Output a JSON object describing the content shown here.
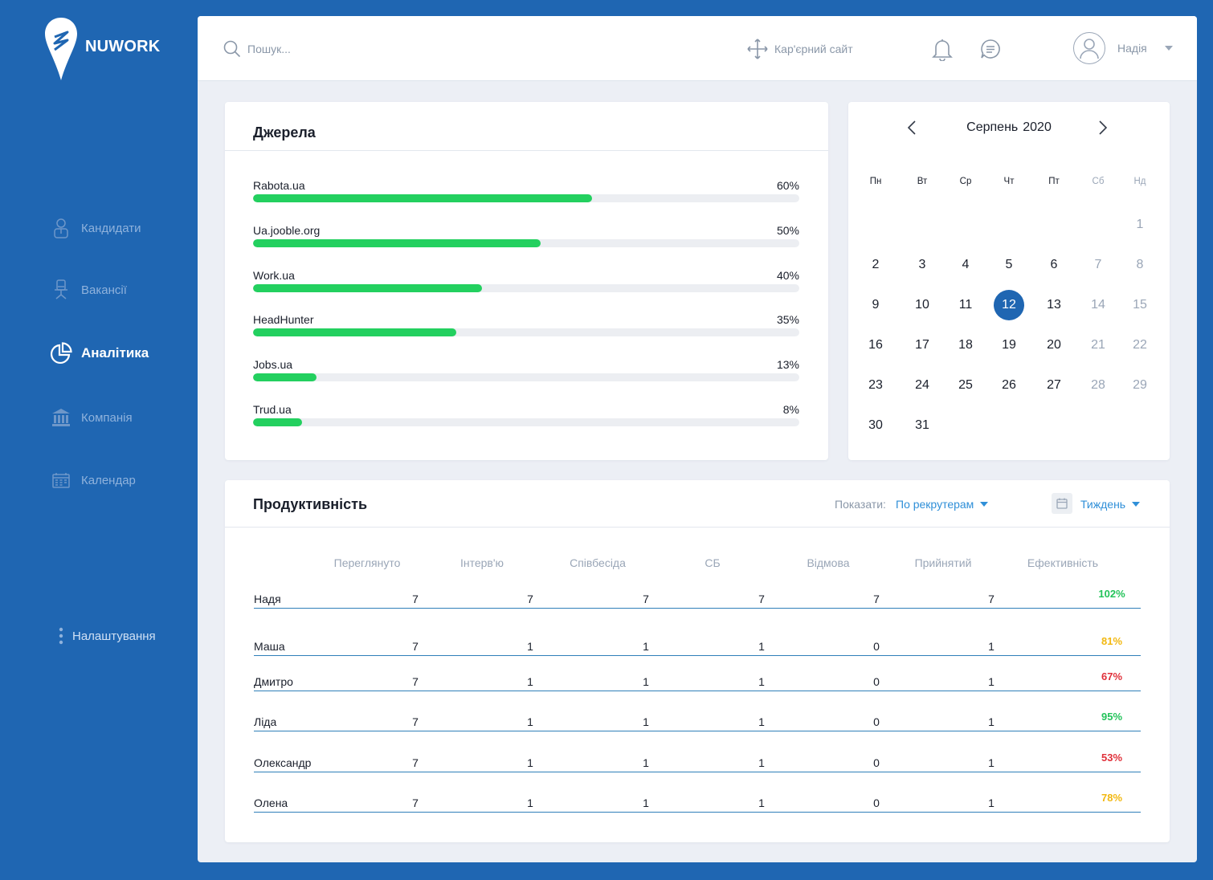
{
  "app": {
    "name": "NUWORK"
  },
  "sidebar": {
    "items": [
      {
        "label": "Кандидати",
        "icon": "user-icon",
        "active": false
      },
      {
        "label": "Вакансії",
        "icon": "chair-icon",
        "active": false
      },
      {
        "label": "Аналітика",
        "icon": "pie-chart-icon",
        "active": true
      },
      {
        "label": "Компанія",
        "icon": "building-icon",
        "active": false
      },
      {
        "label": "Календар",
        "icon": "calendar-icon",
        "active": false
      }
    ],
    "settings": {
      "label": "Налаштування",
      "icon": "more-vertical-icon"
    }
  },
  "topbar": {
    "search": {
      "placeholder": "Пошук...",
      "value": ""
    },
    "career_site": "Кар'єрний сайт",
    "user_name": "Надія"
  },
  "sources": {
    "title": "Джерела",
    "items": [
      {
        "name": "Rabota.ua",
        "percent_label": "60%",
        "fill": 0.62
      },
      {
        "name": "Ua.jooble.org",
        "percent_label": "50%",
        "fill": 0.526
      },
      {
        "name": "Work.ua",
        "percent_label": "40%",
        "fill": 0.419
      },
      {
        "name": "HeadHunter",
        "percent_label": "35%",
        "fill": 0.372
      },
      {
        "name": "Jobs.ua",
        "percent_label": "13%",
        "fill": 0.116
      },
      {
        "name": "Trud.ua",
        "percent_label": "8%",
        "fill": 0.09
      }
    ]
  },
  "calendar": {
    "month": "Серпень",
    "year": "2020",
    "weekdays": [
      "Пн",
      "Вт",
      "Ср",
      "Чт",
      "Пт",
      "Сб",
      "Нд"
    ],
    "weeks": [
      [
        "",
        "",
        "",
        "",
        "",
        "",
        "1"
      ],
      [
        "2",
        "3",
        "4",
        "5",
        "6",
        "7",
        "8"
      ],
      [
        "9",
        "10",
        "11",
        "12",
        "13",
        "14",
        "15"
      ],
      [
        "16",
        "17",
        "18",
        "19",
        "20",
        "21",
        "22"
      ],
      [
        "23",
        "24",
        "25",
        "26",
        "27",
        "28",
        "29"
      ],
      [
        "30",
        "31",
        "",
        "",
        "",
        "",
        ""
      ]
    ],
    "selected_day": "12",
    "selected_color": "#1f66b2"
  },
  "productivity": {
    "title": "Продуктивність",
    "show_label": "Показати:",
    "show_value": "По рекрутерам",
    "period_value": "Тиждень",
    "columns": [
      "Переглянуто",
      "Інтерв'ю",
      "Співбесіда",
      "СБ",
      "Відмова",
      "Прийнятий",
      "Ефективність"
    ],
    "rows": [
      {
        "name": "Надя",
        "values": [
          "7",
          "7",
          "7",
          "7",
          "7",
          "7"
        ],
        "efficiency": "102%",
        "eff_color": "#23c35a"
      },
      {
        "name": "Маша",
        "values": [
          "7",
          "1",
          "1",
          "1",
          "0",
          "1"
        ],
        "efficiency": "81%",
        "eff_color": "#f2b811"
      },
      {
        "name": "Дмитро",
        "values": [
          "7",
          "1",
          "1",
          "1",
          "0",
          "1"
        ],
        "efficiency": "67%",
        "eff_color": "#e0303a"
      },
      {
        "name": "Ліда",
        "values": [
          "7",
          "1",
          "1",
          "1",
          "0",
          "1"
        ],
        "efficiency": "95%",
        "eff_color": "#23c35a"
      },
      {
        "name": "Олександр",
        "values": [
          "7",
          "1",
          "1",
          "1",
          "0",
          "1"
        ],
        "efficiency": "53%",
        "eff_color": "#e0303a"
      },
      {
        "name": "Олена",
        "values": [
          "7",
          "1",
          "1",
          "1",
          "0",
          "1"
        ],
        "efficiency": "78%",
        "eff_color": "#f2b811"
      }
    ]
  },
  "colors": {
    "brand": "#1f66b2",
    "accent_link": "#2f8fd8",
    "progress": "#23d05f"
  }
}
